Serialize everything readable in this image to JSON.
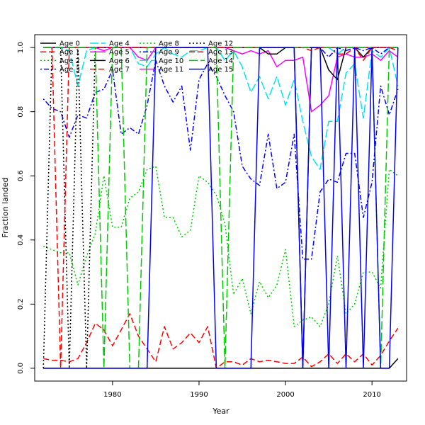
{
  "chart_data": {
    "type": "line",
    "title": "",
    "xlabel": "Year",
    "ylabel": "Fraction landed",
    "xlim": [
      1971,
      2014
    ],
    "ylim": [
      -0.04,
      1.04
    ],
    "xticks": [
      1980,
      1990,
      2000,
      2010
    ],
    "yticks": [
      0.0,
      0.2,
      0.4,
      0.6,
      0.8,
      1.0
    ],
    "x": [
      1972,
      1973,
      1974,
      1975,
      1976,
      1977,
      1978,
      1979,
      1980,
      1981,
      1982,
      1983,
      1984,
      1985,
      1986,
      1987,
      1988,
      1989,
      1990,
      1991,
      1992,
      1993,
      1994,
      1995,
      1996,
      1997,
      1998,
      1999,
      2000,
      2001,
      2002,
      2003,
      2004,
      2005,
      2006,
      2007,
      2008,
      2009,
      2010,
      2011,
      2012,
      2013
    ],
    "grid": false,
    "legend_position": "top-left, 4 columns",
    "series": [
      {
        "name": "Age 0",
        "color": "#000000",
        "dash": "solid",
        "values": [
          0,
          0,
          0,
          0,
          0,
          0,
          0,
          0,
          0,
          0,
          0,
          0,
          0,
          0,
          0,
          0,
          0,
          0,
          0,
          0,
          0,
          0,
          0,
          0,
          0,
          0,
          0,
          0,
          0,
          0,
          0,
          0,
          0,
          0,
          0,
          0,
          0,
          0,
          0,
          0,
          0,
          0.03
        ]
      },
      {
        "name": "Age 1",
        "color": "#ff0000",
        "dash": "dashed",
        "values": [
          0.03,
          0.025,
          0.025,
          0.02,
          0.03,
          0.08,
          0.14,
          0.12,
          0.07,
          0.12,
          0.17,
          0.1,
          0.06,
          0.02,
          0.13,
          0.06,
          0.08,
          0.11,
          0.08,
          0.13,
          0,
          0.02,
          0.02,
          0.01,
          0.03,
          0.02,
          0.025,
          0.02,
          0.015,
          0.015,
          0.035,
          0.005,
          0.02,
          0.045,
          0.015,
          0.045,
          0.02,
          0.045,
          0.01,
          0.04,
          0.085,
          0.125
        ]
      },
      {
        "name": "Age 2",
        "color": "#00cc00",
        "dash": "dotted",
        "values": [
          0.38,
          0.37,
          0.36,
          0.36,
          0.26,
          0.35,
          0.42,
          0.6,
          0.44,
          0.44,
          0.53,
          0.55,
          0.62,
          0.63,
          0.47,
          0.47,
          0.41,
          0.43,
          0.6,
          0.58,
          0.54,
          0.45,
          0.23,
          0.28,
          0.17,
          0.27,
          0.22,
          0.26,
          0.37,
          0.13,
          0.15,
          0.16,
          0.13,
          0.2,
          0.35,
          0.17,
          0.2,
          0.3,
          0.3,
          0.25,
          0.62,
          0.6
        ]
      },
      {
        "name": "Age 3",
        "color": "#0000ff",
        "dash": "dotdash",
        "values": [
          0.84,
          0.81,
          0.8,
          0.72,
          0.79,
          0.78,
          0.86,
          0.87,
          0.93,
          0.73,
          0.75,
          0.73,
          0.82,
          0.96,
          0.88,
          0.83,
          0.88,
          0.68,
          0.9,
          0.95,
          0.91,
          0.85,
          0.8,
          0.63,
          0.59,
          0.57,
          0.73,
          0.56,
          0.58,
          0.73,
          0.34,
          0.34,
          0.55,
          0.59,
          0.58,
          0.67,
          0.67,
          0.47,
          0.58,
          0.88,
          0.79,
          0.87
        ]
      },
      {
        "name": "Age 4",
        "color": "#00e5ee",
        "dash": "longdash",
        "values": [
          1,
          1,
          1,
          0.99,
          0.88,
          0.99,
          1,
          1,
          1,
          1,
          1,
          0.95,
          0.94,
          0.98,
          1,
          0.98,
          0.97,
          0.99,
          0.99,
          1,
          1,
          0.96,
          0.99,
          0.94,
          0.86,
          0.91,
          0.84,
          0.91,
          0.82,
          0.9,
          0.77,
          0.66,
          0.62,
          0.77,
          0.77,
          0.92,
          0.95,
          0.78,
          0.99,
          0.97,
          1,
          0.88
        ]
      },
      {
        "name": "Age 5",
        "color": "#ff00ff",
        "dash": "solid",
        "values": [
          1,
          1,
          1,
          1,
          1,
          1,
          1,
          0.99,
          1,
          1,
          1,
          0.97,
          0.96,
          1,
          1,
          1,
          1,
          1,
          1,
          1,
          1,
          1,
          0.99,
          0.98,
          0.99,
          0.98,
          0.99,
          0.94,
          0.96,
          0.96,
          0.97,
          0.8,
          0.82,
          0.85,
          0.97,
          0.98,
          0.97,
          0.97,
          0.98,
          0.96,
          0.99,
          0.97
        ]
      },
      {
        "name": "Age 6",
        "color": "#000000",
        "dash": "solid",
        "values": [
          1,
          1,
          1,
          1,
          1,
          1,
          1,
          1,
          1,
          1,
          1,
          1,
          1,
          1,
          1,
          1,
          1,
          1,
          1,
          1,
          1,
          1,
          1,
          1,
          1,
          1,
          0.98,
          0.98,
          1,
          1,
          0,
          1,
          1,
          0.93,
          0.9,
          1,
          1,
          0.97,
          1,
          1,
          1,
          1
        ]
      },
      {
        "name": "Age 7",
        "color": "#ff0000",
        "dash": "dashed",
        "values": [
          1,
          1,
          1,
          1,
          1,
          1,
          1,
          1,
          1,
          1,
          1,
          1,
          1,
          1,
          1,
          1,
          1,
          1,
          1,
          1,
          1,
          1,
          1,
          1,
          1,
          1,
          1,
          1,
          1,
          1,
          1,
          0.99,
          1,
          1,
          0.98,
          0.98,
          1,
          0.96,
          1,
          1,
          1,
          0.99
        ]
      },
      {
        "name": "Age 8",
        "color": "#00cc00",
        "dash": "dotted",
        "values": [
          1,
          1,
          1,
          1,
          1,
          1,
          1,
          1,
          1,
          1,
          1,
          1,
          1,
          1,
          1,
          1,
          1,
          1,
          1,
          1,
          1,
          1,
          1,
          1,
          1,
          1,
          1,
          1,
          1,
          1,
          1,
          1,
          1,
          1,
          1,
          1,
          1,
          1,
          1,
          1,
          1,
          1
        ]
      },
      {
        "name": "Age 9",
        "color": "#0000ff",
        "dash": "dotdash",
        "values": [
          1,
          1,
          1,
          1,
          1,
          1,
          1,
          1,
          1,
          1,
          1,
          1,
          1,
          1,
          1,
          1,
          1,
          1,
          1,
          1,
          1,
          1,
          1,
          1,
          1,
          1,
          1,
          1,
          1,
          1,
          1,
          1,
          1,
          0.97,
          1,
          0.99,
          1,
          0.99,
          1,
          0.98,
          1,
          1
        ]
      },
      {
        "name": "Age 10",
        "color": "#00e5ee",
        "dash": "longdash",
        "values": [
          1,
          1,
          1,
          1,
          1,
          1,
          1,
          1,
          1,
          1,
          1,
          1,
          1,
          1,
          1,
          1,
          1,
          1,
          1,
          1,
          1,
          1,
          1,
          1,
          1,
          1,
          1,
          1,
          1,
          1,
          1,
          1,
          1,
          1,
          0.98,
          1,
          1,
          1,
          1,
          1,
          1,
          1
        ]
      },
      {
        "name": "Age 11",
        "color": "#ff00ff",
        "dash": "solid",
        "values": [
          1,
          1,
          1,
          1,
          1,
          1,
          1,
          1,
          1,
          1,
          1,
          1,
          1,
          1,
          1,
          1,
          1,
          1,
          1,
          1,
          1,
          1,
          1,
          1,
          1,
          1,
          1,
          1,
          1,
          1,
          1,
          1,
          1,
          1,
          1,
          1,
          1,
          1,
          1,
          1,
          1,
          1
        ]
      },
      {
        "name": "Age 12",
        "color": "#000000",
        "dash": "dotted",
        "values": [
          0,
          1,
          1,
          0,
          1,
          0,
          1,
          1,
          1,
          1,
          1,
          1,
          1,
          1,
          1,
          1,
          1,
          1,
          1,
          1,
          1,
          1,
          1,
          1,
          1,
          1,
          1,
          1,
          1,
          1,
          1,
          1,
          1,
          1,
          1,
          1,
          1,
          1,
          1,
          1,
          1,
          1
        ]
      },
      {
        "name": "Age 13",
        "color": "#ff0000",
        "dash": "dashed",
        "values": [
          1,
          1,
          0,
          1,
          1,
          1,
          1,
          1,
          1,
          1,
          1,
          1,
          1,
          1,
          1,
          1,
          1,
          1,
          1,
          1,
          1,
          1,
          1,
          1,
          1,
          1,
          1,
          1,
          1,
          1,
          1,
          1,
          1,
          1,
          1,
          1,
          1,
          1,
          1,
          1,
          1,
          1
        ]
      },
      {
        "name": "Age 14",
        "color": "#00cc00",
        "dash": "longdash",
        "values": [
          1,
          1,
          1,
          1,
          1,
          1,
          1,
          0,
          1,
          1,
          0,
          0,
          1,
          1,
          1,
          1,
          1,
          1,
          1,
          1,
          1,
          0,
          1,
          1,
          1,
          1,
          1,
          1,
          1,
          1,
          1,
          1,
          1,
          1,
          1,
          1,
          1,
          1,
          1,
          0,
          1,
          1
        ]
      },
      {
        "name": "Age 15",
        "color": "#0000ff",
        "dash": "solid",
        "values": [
          0,
          0,
          0,
          0,
          0,
          0,
          0,
          0,
          0,
          0,
          0,
          0,
          0,
          1,
          1,
          1,
          1,
          1,
          1,
          1,
          0,
          0,
          0,
          0,
          0,
          1,
          1,
          1,
          1,
          1,
          0,
          1,
          1,
          0,
          1,
          0,
          1,
          0,
          1,
          0,
          0,
          1
        ]
      }
    ]
  }
}
